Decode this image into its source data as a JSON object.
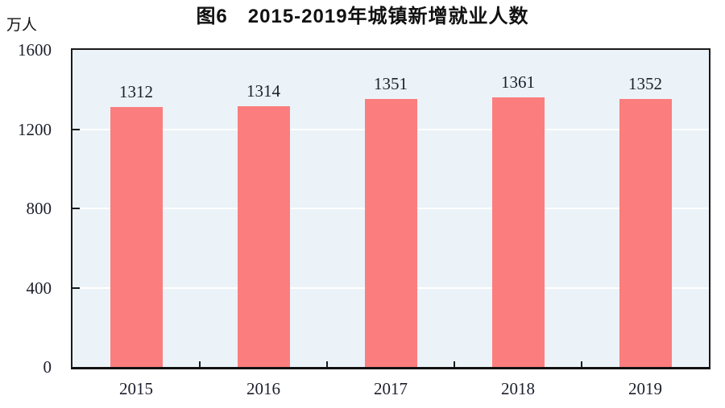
{
  "chart_data": {
    "type": "bar",
    "title": "图6　2015-2019年城镇新增就业人数",
    "unit": "万人",
    "categories": [
      "2015",
      "2016",
      "2017",
      "2018",
      "2019"
    ],
    "values": [
      1312,
      1314,
      1351,
      1361,
      1352
    ],
    "xlabel": "",
    "ylabel": "万人",
    "ylim": [
      0,
      1600
    ],
    "yticks": [
      0,
      400,
      800,
      1200,
      1600
    ],
    "grid": "horizontal-white-lines",
    "legend": "none",
    "colors": {
      "bar_fill": "#fb7d7d",
      "plot_background": "#ebf3f8",
      "gridline": "#ffffff",
      "axis_frame": "#1a1a1a",
      "label_text": "#1c1f2b",
      "title_text": "#111111"
    }
  }
}
